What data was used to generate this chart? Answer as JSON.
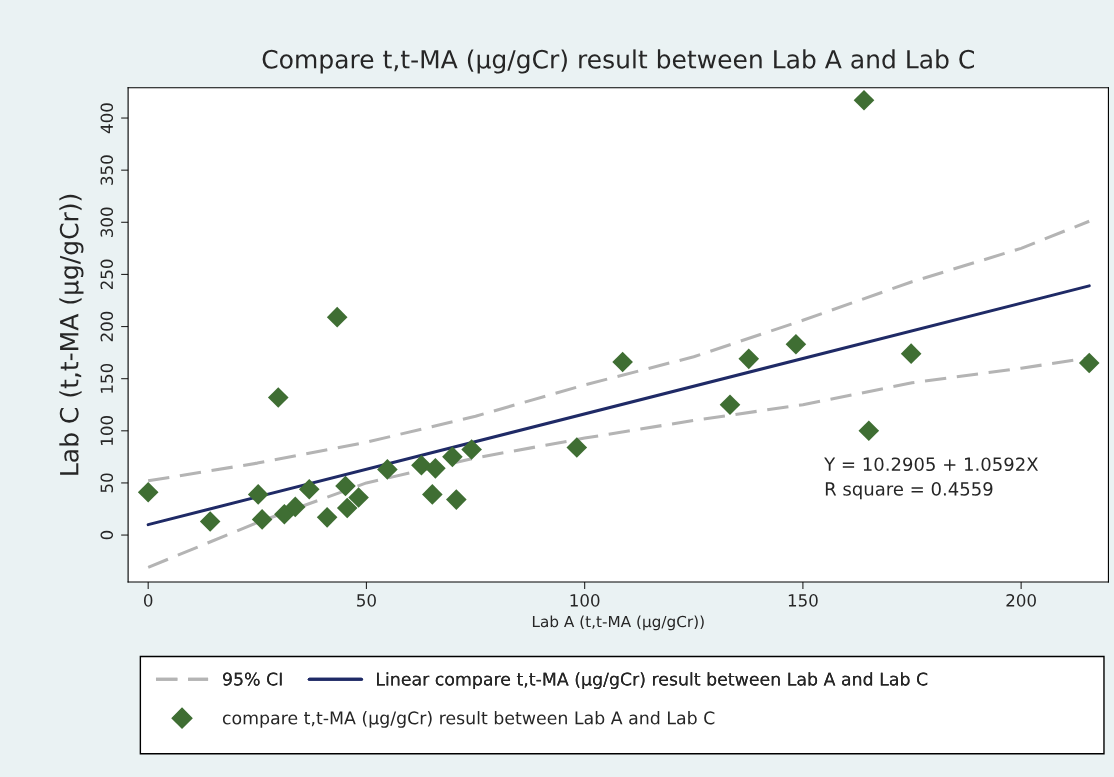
{
  "chart_data": {
    "type": "scatter",
    "title": "Compare t,t-MA (μg/gCr) result between Lab A and Lab C",
    "xlabel": "Lab A (t,t-MA (μg/gCr))",
    "ylabel": "Lab C (t,t-MA (μg/gCr))",
    "xlim": [
      -4.6,
      220
    ],
    "ylim": [
      -45,
      429
    ],
    "xticks": [
      0,
      50,
      100,
      150,
      200
    ],
    "yticks": [
      0,
      50,
      100,
      150,
      200,
      250,
      300,
      350,
      400
    ],
    "grid": false,
    "legend": "bottom",
    "annotations": [
      "Y = 10.2905 + 1.0592X",
      "R square = 0.4559"
    ],
    "series": [
      {
        "name": "95% CI",
        "type": "line",
        "line_style": "dashed",
        "marker": "none",
        "color": "#b4b4b4",
        "x": [
          0,
          25,
          50,
          75,
          100,
          125,
          150,
          175,
          200,
          215.6
        ],
        "values": [
          52,
          69,
          89,
          114,
          144,
          171,
          206,
          243,
          275,
          301
        ]
      },
      {
        "type": "line",
        "line_style": "dashed",
        "marker": "none",
        "color": "#b4b4b4",
        "x": [
          0,
          25,
          50,
          75,
          100,
          125,
          150,
          175,
          200,
          215.6
        ],
        "values": [
          -31,
          12,
          50,
          74,
          93,
          110,
          125,
          146,
          160,
          170
        ]
      },
      {
        "name": "Linear compare t,t-MA (μg/gCr) result between Lab A and Lab C",
        "type": "line",
        "line_style": "solid",
        "marker": "none",
        "color": "#1f2a66",
        "x": [
          0,
          215.6
        ],
        "values": [
          10,
          239
        ]
      },
      {
        "name": "compare t,t-MA (μg/gCr) result between Lab A and Lab C",
        "type": "scatter",
        "marker": "diamond",
        "color": "#3f6e33",
        "x": [
          0,
          14.2,
          25.2,
          26.1,
          29.8,
          31.2,
          33.7,
          36.9,
          41,
          43.3,
          45.2,
          45.6,
          48.2,
          54.8,
          62.6,
          65.1,
          65.8,
          69.7,
          70.6,
          74.1,
          98.2,
          108.7,
          133.3,
          137.6,
          148.4,
          164,
          165.1,
          174.8,
          215.6
        ],
        "values": [
          41,
          13,
          39,
          15,
          132,
          20,
          27,
          44,
          17,
          209,
          47,
          26,
          36,
          63,
          67,
          39,
          64,
          75,
          34,
          82,
          84,
          166,
          125,
          169,
          183,
          417,
          100,
          174,
          165
        ]
      }
    ]
  }
}
